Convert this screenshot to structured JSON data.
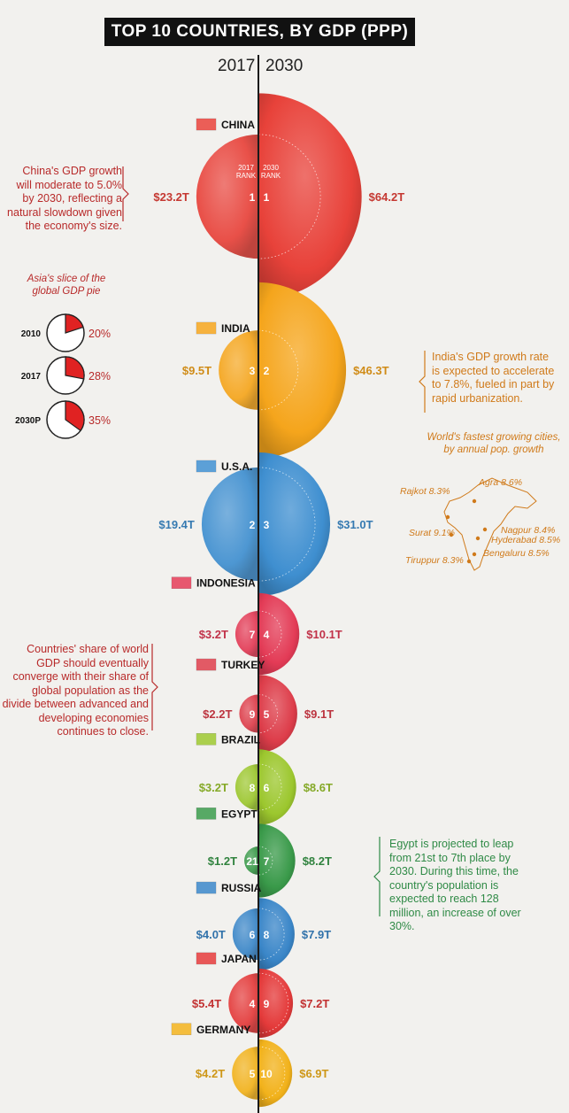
{
  "title": "TOP 10 COUNTRIES, BY GDP (PPP)",
  "years": {
    "left": "2017",
    "right": "2030"
  },
  "rank_labels": {
    "left": "2017 RANK",
    "right": "2030 RANK"
  },
  "chart_data": {
    "type": "bubble-comparison",
    "title": "TOP 10 COUNTRIES, BY GDP (PPP)",
    "unit": "Trillion USD (PPP)",
    "series_names": [
      "2017",
      "2030"
    ],
    "countries": [
      {
        "name": "CHINA",
        "gdp2017": 23.2,
        "gdp2030": 64.2,
        "label2017": "$23.2T",
        "label2030": "$64.2T",
        "rank2017": "1",
        "rank2030": "1",
        "color": "#e8423a"
      },
      {
        "name": "INDIA",
        "gdp2017": 9.5,
        "gdp2030": 46.3,
        "label2017": "$9.5T",
        "label2030": "$46.3T",
        "rank2017": "3",
        "rank2030": "2",
        "color": "#f5a51c"
      },
      {
        "name": "U.S.A.",
        "gdp2017": 19.4,
        "gdp2030": 31.0,
        "label2017": "$19.4T",
        "label2030": "$31.0T",
        "rank2017": "2",
        "rank2030": "3",
        "color": "#3f8fd0"
      },
      {
        "name": "INDONESIA",
        "gdp2017": 3.2,
        "gdp2030": 10.1,
        "label2017": "$3.2T",
        "label2030": "$10.1T",
        "rank2017": "7",
        "rank2030": "4",
        "color": "#e33b56"
      },
      {
        "name": "TURKEY",
        "gdp2017": 2.2,
        "gdp2030": 9.1,
        "label2017": "$2.2T",
        "label2030": "$9.1T",
        "rank2017": "9",
        "rank2030": "5",
        "color": "#dd3d4a"
      },
      {
        "name": "BRAZIL",
        "gdp2017": 3.2,
        "gdp2030": 8.6,
        "label2017": "$3.2T",
        "label2030": "$8.6T",
        "rank2017": "8",
        "rank2030": "6",
        "color": "#9cc72e"
      },
      {
        "name": "EGYPT",
        "gdp2017": 1.2,
        "gdp2030": 8.2,
        "label2017": "$1.2T",
        "label2030": "$8.2T",
        "rank2017": "21",
        "rank2030": "7",
        "color": "#3a9a4a"
      },
      {
        "name": "RUSSIA",
        "gdp2017": 4.0,
        "gdp2030": 7.9,
        "label2017": "$4.0T",
        "label2030": "$7.9T",
        "rank2017": "6",
        "rank2030": "8",
        "color": "#3a86c8"
      },
      {
        "name": "JAPAN",
        "gdp2017": 5.4,
        "gdp2030": 7.2,
        "label2017": "$5.4T",
        "label2030": "$7.2T",
        "rank2017": "4",
        "rank2030": "9",
        "color": "#e43a3a"
      },
      {
        "name": "GERMANY",
        "gdp2017": 4.2,
        "gdp2030": 6.9,
        "label2017": "$4.2T",
        "label2030": "$6.9T",
        "rank2017": "5",
        "rank2030": "10",
        "color": "#f2b21b"
      }
    ],
    "asia_pie": {
      "title": "Asia's slice of the global GDP pie",
      "items": [
        {
          "year": "2010",
          "percent": 20,
          "label": "20%"
        },
        {
          "year": "2017",
          "percent": 28,
          "label": "28%"
        },
        {
          "year": "2030P",
          "percent": 35,
          "label": "35%"
        }
      ]
    },
    "india_cities": {
      "title": "World's fastest growing cities, by annual pop. growth",
      "cities": [
        {
          "name": "Rajkot",
          "growth": "8.3%"
        },
        {
          "name": "Agra",
          "growth": "8.6%"
        },
        {
          "name": "Nagpur",
          "growth": "8.4%"
        },
        {
          "name": "Surat",
          "growth": "9.1%"
        },
        {
          "name": "Hyderabad",
          "growth": "8.5%"
        },
        {
          "name": "Bengaluru",
          "growth": "8.5%"
        },
        {
          "name": "Tiruppur",
          "growth": "8.3%"
        }
      ]
    }
  },
  "notes": {
    "china": "China's GDP growth will moderate to 5.0% by 2030, reflecting a natural slowdown given the economy's size.",
    "india": "India's GDP growth rate is expected to accelerate to 7.8%, fueled in part by rapid urbanization.",
    "share": "Countries' share of world GDP should eventually converge with their share of global population as the divide between advanced and developing economies continues to close.",
    "egypt": "Egypt is projected to leap from 21st to 7th place by 2030. During this time, the country's population is expected to reach 128 million, an increase of over 30%."
  },
  "colors": {
    "note_red": "#b82a2a",
    "note_orange": "#d07a1a",
    "note_green": "#2f8a46",
    "axis": "#1a1a1a"
  }
}
